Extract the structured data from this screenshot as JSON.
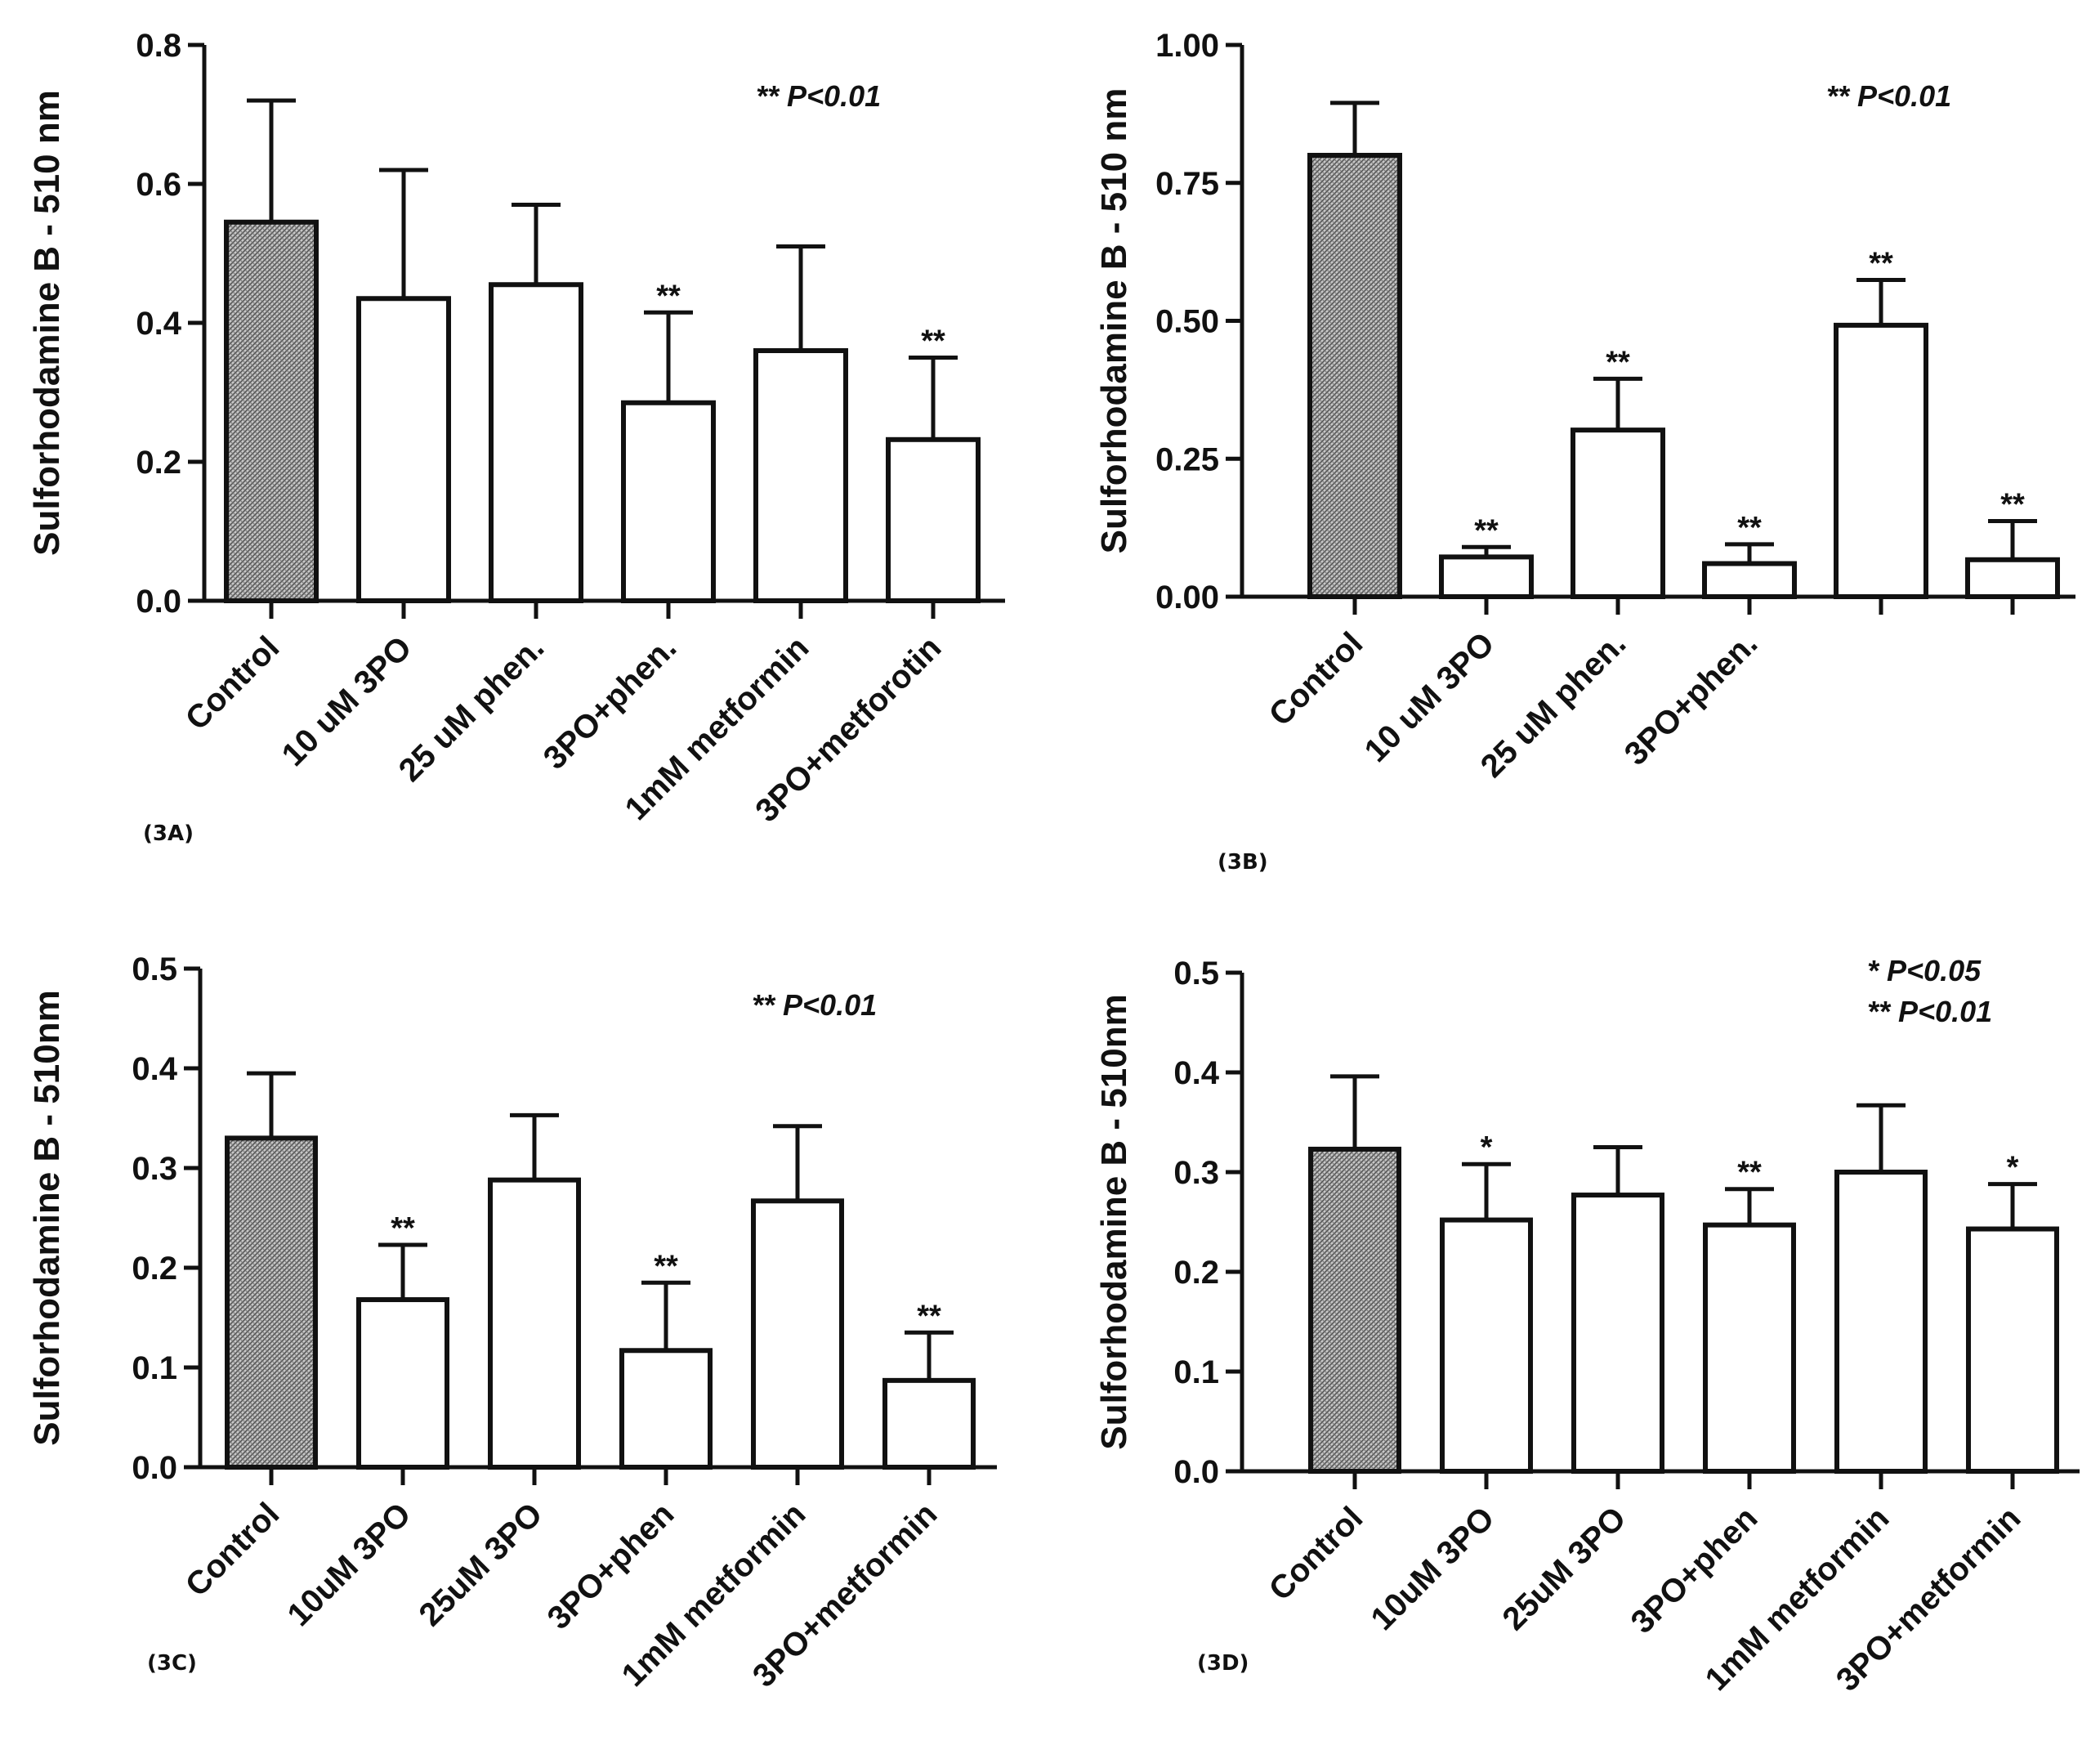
{
  "panels": [
    {
      "id": "3A",
      "panel_label": "(3A)",
      "ylabel": "Sulforhodamine B - 510 nm",
      "annotation": [
        "**  P<0.01"
      ]
    },
    {
      "id": "3B",
      "panel_label": "(3B)",
      "ylabel": "Sulforhodamine B - 510 nm",
      "annotation": [
        "**  P<0.01"
      ]
    },
    {
      "id": "3C",
      "panel_label": "(3C)",
      "ylabel": "Sulforhodamine B - 510nm",
      "annotation": [
        "**  P<0.01"
      ]
    },
    {
      "id": "3D",
      "panel_label": "(3D)",
      "ylabel": "Sulforhodamine B - 510nm",
      "annotation": [
        "*  P<0.05",
        "**  P<0.01"
      ]
    }
  ],
  "colors": {
    "control_fill": "#8c8c8c",
    "bar_fill": "#ffffff",
    "stroke": "#111111"
  },
  "chart_data": [
    {
      "type": "bar",
      "categories": [
        "Control",
        "10 uM 3PO",
        "25 uM phen.",
        "3PO+phen.",
        "1mM metformin",
        "3PO+metforotin"
      ],
      "values": [
        0.545,
        0.435,
        0.455,
        0.285,
        0.36,
        0.232
      ],
      "error": [
        0.175,
        0.185,
        0.115,
        0.13,
        0.15,
        0.118
      ],
      "significance": [
        "",
        "",
        "",
        "**",
        "",
        "**"
      ],
      "ylabel": "Sulforhodamine B - 510 nm",
      "ylim": [
        0,
        0.8
      ],
      "yticks": [
        0.0,
        0.2,
        0.4,
        0.6,
        0.8
      ],
      "ytick_labels": [
        "0.0",
        "0.2",
        "0.4",
        "0.6",
        "0.8"
      ],
      "grid": false
    },
    {
      "type": "bar",
      "categories": [
        "Control",
        "10 uM 3PO",
        "25 uM phen.",
        "3PO+phen.",
        "",
        ""
      ],
      "values": [
        0.8,
        0.072,
        0.302,
        0.06,
        0.492,
        0.067
      ],
      "error": [
        0.095,
        0.018,
        0.093,
        0.035,
        0.082,
        0.07
      ],
      "significance": [
        "",
        "**",
        "**",
        "**",
        "**",
        "**"
      ],
      "ylabel": "Sulforhodamine B - 510 nm",
      "ylim": [
        0,
        1.0
      ],
      "yticks": [
        0.0,
        0.25,
        0.5,
        0.75,
        1.0
      ],
      "ytick_labels": [
        "0.00",
        "0.25",
        "0.50",
        "0.75",
        "1.00"
      ],
      "grid": false
    },
    {
      "type": "bar",
      "categories": [
        "Control",
        "10uM 3PO",
        "25uM 3PO",
        "3PO+phen",
        "1mM metformin",
        "3PO+metformin"
      ],
      "values": [
        0.33,
        0.168,
        0.288,
        0.117,
        0.267,
        0.087
      ],
      "error": [
        0.065,
        0.055,
        0.065,
        0.068,
        0.075,
        0.048
      ],
      "significance": [
        "",
        "**",
        "",
        "**",
        "",
        "**"
      ],
      "ylabel": "Sulforhodamine B - 510nm",
      "ylim": [
        0,
        0.5
      ],
      "yticks": [
        0.0,
        0.1,
        0.2,
        0.3,
        0.4,
        0.5
      ],
      "ytick_labels": [
        "0.0",
        "0.1",
        "0.2",
        "0.3",
        "0.4",
        "0.5"
      ],
      "grid": false
    },
    {
      "type": "bar",
      "categories": [
        "Control",
        "10uM 3PO",
        "25uM 3PO",
        "3PO+phen",
        "1mM metformin",
        "3PO+metformin"
      ],
      "values": [
        0.323,
        0.252,
        0.277,
        0.247,
        0.3,
        0.243
      ],
      "error": [
        0.073,
        0.056,
        0.048,
        0.036,
        0.067,
        0.045
      ],
      "significance": [
        "",
        "*",
        "",
        "**",
        "",
        "*"
      ],
      "ylabel": "Sulforhodamine B - 510nm",
      "ylim": [
        0,
        0.5
      ],
      "yticks": [
        0.0,
        0.1,
        0.2,
        0.3,
        0.4,
        0.5
      ],
      "ytick_labels": [
        "0.0",
        "0.1",
        "0.2",
        "0.3",
        "0.4",
        "0.5"
      ],
      "grid": false
    }
  ]
}
